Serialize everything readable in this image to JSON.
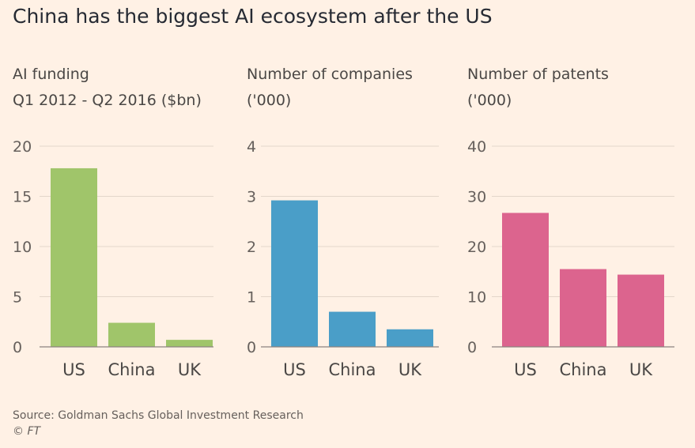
{
  "title": "China has the biggest AI ecosystem after the US",
  "source": "Source: Goldman Sachs Global Investment Research",
  "credit": "© FT",
  "chart_data": [
    {
      "type": "bar",
      "title": "AI funding",
      "subtitle": "Q1 2012 - Q2 2016 ($bn)",
      "categories": [
        "US",
        "China",
        "UK"
      ],
      "values": [
        17.8,
        2.4,
        0.7
      ],
      "ylim": [
        0,
        20
      ],
      "yticks": [
        0,
        5,
        10,
        15,
        20
      ],
      "color": "#a0c56a",
      "grid": true
    },
    {
      "type": "bar",
      "title": "Number of companies",
      "subtitle": "('000)",
      "categories": [
        "US",
        "China",
        "UK"
      ],
      "values": [
        2.92,
        0.7,
        0.35
      ],
      "ylim": [
        0,
        4
      ],
      "yticks": [
        0,
        1,
        2,
        3,
        4
      ],
      "color": "#4a9ec8",
      "grid": true
    },
    {
      "type": "bar",
      "title": "Number of patents",
      "subtitle": "('000)",
      "categories": [
        "US",
        "China",
        "UK"
      ],
      "values": [
        26.7,
        15.5,
        14.4
      ],
      "ylim": [
        0,
        40
      ],
      "yticks": [
        0,
        10,
        20,
        30,
        40
      ],
      "color": "#dc648e",
      "grid": true
    }
  ]
}
